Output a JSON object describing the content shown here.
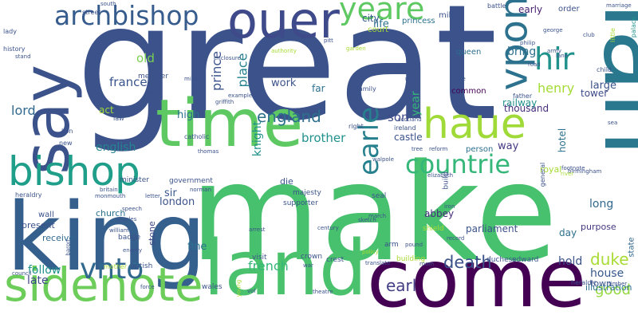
{
  "colors": {
    "background": "#ffffff",
    "palette": [
      "#440154",
      "#3b528b",
      "#21918c",
      "#5ec962",
      "#fde725"
    ]
  },
  "words": [
    {
      "id": "great",
      "text": "great",
      "color": "#3b528b"
    },
    {
      "id": "make",
      "text": "make",
      "color": "#47c16e"
    },
    {
      "id": "come",
      "text": "come",
      "color": "#440154"
    },
    {
      "id": "man",
      "text": "man",
      "color": "#2a788e"
    },
    {
      "id": "king",
      "text": "king",
      "color": "#355f8d"
    },
    {
      "id": "land",
      "text": "land",
      "color": "#4ac16d"
    },
    {
      "id": "time",
      "text": "time",
      "color": "#5ec962"
    },
    {
      "id": "say",
      "text": "say",
      "color": "#3b528b"
    },
    {
      "id": "sidenote",
      "text": "sidenote",
      "color": "#6ccd5a"
    },
    {
      "id": "bishop",
      "text": "bishop",
      "color": "#1f9e89"
    },
    {
      "id": "ouer",
      "text": "ouer",
      "color": "#3e4a89"
    },
    {
      "id": "haue",
      "text": "haue",
      "color": "#a0da39"
    },
    {
      "id": "archbishop",
      "text": "archbishop",
      "color": "#365c8d"
    },
    {
      "id": "vpon",
      "text": "vpon",
      "color": "#2c728e"
    },
    {
      "id": "hir",
      "text": "hir",
      "color": "#21918c"
    },
    {
      "id": "yeare",
      "text": "yeare",
      "color": "#5ec962"
    },
    {
      "id": "vnto",
      "text": "vnto",
      "color": "#31688e"
    },
    {
      "id": "countrie",
      "text": "countrie",
      "color": "#35b779"
    },
    {
      "id": "earle",
      "text": "earle",
      "color": "#27808e"
    },
    {
      "id": "sonne",
      "text": "sonne",
      "color": "#1f9a8a"
    },
    {
      "id": "duke",
      "text": "duke",
      "color": "#a8db34"
    },
    {
      "id": "death",
      "text": "death",
      "color": "#3b528b"
    },
    {
      "id": "earl",
      "text": "earl",
      "color": "#433e85"
    },
    {
      "id": "england",
      "text": "england",
      "color": "#2d708e"
    },
    {
      "id": "french",
      "text": "french",
      "color": "#35b779"
    },
    {
      "id": "good",
      "text": "good",
      "color": "#95d840"
    },
    {
      "id": "brother",
      "text": "brother",
      "color": "#21918c"
    },
    {
      "id": "son",
      "text": "son",
      "color": "#3e4a89"
    },
    {
      "id": "english",
      "text": "english",
      "color": "#25858e"
    },
    {
      "id": "lord",
      "text": "lord",
      "color": "#31688e"
    },
    {
      "id": "france",
      "text": "france",
      "color": "#3a548c"
    },
    {
      "id": "old",
      "text": "old",
      "color": "#7ad151"
    },
    {
      "id": "henry",
      "text": "henry",
      "color": "#a5db36"
    },
    {
      "id": "house",
      "text": "house",
      "color": "#38598c"
    },
    {
      "id": "follow",
      "text": "follow",
      "color": "#21918c"
    },
    {
      "id": "late",
      "text": "late",
      "color": "#3e4a89"
    },
    {
      "id": "fine",
      "text": "fine",
      "color": "#2c728e"
    },
    {
      "id": "hold",
      "text": "hold",
      "color": "#3b528b"
    },
    {
      "id": "long",
      "text": "long",
      "color": "#31688e"
    },
    {
      "id": "prince",
      "text": "prince",
      "color": "#3b528b"
    },
    {
      "id": "place",
      "text": "place",
      "color": "#26828e"
    },
    {
      "id": "work",
      "text": "work",
      "color": "#3b528b"
    },
    {
      "id": "bring",
      "text": "bring",
      "color": "#2d708e"
    },
    {
      "id": "large",
      "text": "large",
      "color": "#3b528b"
    },
    {
      "id": "tower",
      "text": "tower",
      "color": "#3e4a89"
    },
    {
      "id": "knight",
      "text": "knight",
      "color": "#21918c"
    },
    {
      "id": "early",
      "text": "early",
      "color": "#482173"
    },
    {
      "id": "life",
      "text": "life",
      "color": "#2c728e"
    },
    {
      "id": "city",
      "text": "city",
      "color": "#38598c"
    },
    {
      "id": "castle",
      "text": "castle",
      "color": "#3b528b"
    },
    {
      "id": "year",
      "text": "year",
      "color": "#35b779"
    },
    {
      "id": "way",
      "text": "way",
      "color": "#443983"
    },
    {
      "id": "high",
      "text": "high",
      "color": "#2c728e"
    },
    {
      "id": "sir",
      "text": "sir",
      "color": "#38598c"
    },
    {
      "id": "london",
      "text": "london",
      "color": "#3b528b"
    },
    {
      "id": "church",
      "text": "church",
      "color": "#2c728e"
    },
    {
      "id": "abbey",
      "text": "abbey",
      "color": "#472c7a"
    },
    {
      "id": "parliament",
      "text": "parliament",
      "color": "#3b528b"
    },
    {
      "id": "purpose",
      "text": "purpose",
      "color": "#453781"
    },
    {
      "id": "day",
      "text": "day",
      "color": "#2d708e"
    },
    {
      "id": "present",
      "text": "present",
      "color": "#3b528b"
    },
    {
      "id": "receive",
      "text": "receive",
      "color": "#31688e"
    },
    {
      "id": "act",
      "text": "act",
      "color": "#a0da39"
    },
    {
      "id": "far",
      "text": "far",
      "color": "#2c728e"
    },
    {
      "id": "thousand",
      "text": "thousand",
      "color": "#472c7a"
    },
    {
      "id": "railway",
      "text": "railway",
      "color": "#21918c"
    },
    {
      "id": "hotel",
      "text": "hotel",
      "color": "#2c728e"
    },
    {
      "id": "royal",
      "text": "royal",
      "color": "#a8db34"
    },
    {
      "id": "order",
      "text": "order",
      "color": "#3b528b"
    },
    {
      "id": "town",
      "text": "town",
      "color": "#3b528b"
    },
    {
      "id": "illustration",
      "text": "illustration",
      "color": "#2c728e"
    },
    {
      "id": "state",
      "text": "state",
      "color": "#31688e"
    },
    {
      "id": "die",
      "text": "die",
      "color": "#3b528b"
    },
    {
      "id": "stone",
      "text": "stone",
      "color": "#3e4a89"
    },
    {
      "id": "mile",
      "text": "mile",
      "color": "#3b528b"
    },
    {
      "id": "common",
      "text": "common",
      "color": "#440154"
    },
    {
      "id": "princess",
      "text": "princess",
      "color": "#2c728e"
    },
    {
      "id": "queen",
      "text": "queen",
      "color": "#2d708e"
    },
    {
      "id": "court",
      "text": "court",
      "color": "#a8db34"
    },
    {
      "id": "person",
      "text": "person",
      "color": "#2d708e"
    },
    {
      "id": "member",
      "text": "member",
      "color": "#3b528b"
    },
    {
      "id": "wall",
      "text": "wall",
      "color": "#3b528b"
    },
    {
      "id": "minister",
      "text": "minister",
      "color": "#3b528b"
    },
    {
      "id": "government",
      "text": "government",
      "color": "#3b528b"
    },
    {
      "id": "majesty",
      "text": "majesty",
      "color": "#3b528b"
    },
    {
      "id": "seal",
      "text": "seal",
      "color": "#3b528b"
    },
    {
      "id": "build",
      "text": "build",
      "color": "#3b528b"
    },
    {
      "id": "supporter",
      "text": "supporter",
      "color": "#3b528b"
    },
    {
      "id": "badge",
      "text": "badge",
      "color": "#3b528b"
    },
    {
      "id": "british",
      "text": "british",
      "color": "#3b528b"
    },
    {
      "id": "visit",
      "text": "visit",
      "color": "#3b528b"
    },
    {
      "id": "crown",
      "text": "crown",
      "color": "#3b528b"
    },
    {
      "id": "crest",
      "text": "crest",
      "color": "#3b528b"
    },
    {
      "id": "arm",
      "text": "arm",
      "color": "#3b528b"
    },
    {
      "id": "duchess",
      "text": "duchess",
      "color": "#3b528b"
    },
    {
      "id": "edward",
      "text": "edward",
      "color": "#3b528b"
    },
    {
      "id": "heraldic",
      "text": "heraldic",
      "color": "#3b528b"
    },
    {
      "id": "heraldry",
      "text": "heraldry",
      "color": "#3b528b"
    },
    {
      "id": "mother",
      "text": "mother",
      "color": "#a8db34"
    },
    {
      "id": "building",
      "text": "building",
      "color": "#a8db34"
    },
    {
      "id": "shield",
      "text": "shield",
      "color": "#a8db34"
    },
    {
      "id": "wales",
      "text": "wales",
      "color": "#3b528b"
    },
    {
      "id": "history",
      "text": "history",
      "color": "#3b528b"
    },
    {
      "id": "lady",
      "text": "lady",
      "color": "#3b528b"
    },
    {
      "id": "ireland",
      "text": "ireland",
      "color": "#3b528b"
    },
    {
      "id": "right",
      "text": "right",
      "color": "#3b528b"
    },
    {
      "id": "general",
      "text": "general",
      "color": "#3b528b"
    },
    {
      "id": "lion",
      "text": "lion",
      "color": "#3b528b"
    },
    {
      "id": "new",
      "text": "new",
      "color": "#3b528b"
    },
    {
      "id": "law",
      "text": "law",
      "color": "#3b528b"
    },
    {
      "id": "catholic",
      "text": "catholic",
      "color": "#3b528b"
    },
    {
      "id": "father",
      "text": "father",
      "color": "#3b528b"
    },
    {
      "id": "family",
      "text": "family",
      "color": "#3b528b"
    },
    {
      "id": "street",
      "text": "street",
      "color": "#3b528b"
    },
    {
      "id": "battle",
      "text": "battle",
      "color": "#3b528b"
    },
    {
      "id": "marriage",
      "text": "marriage",
      "color": "#3b528b"
    },
    {
      "id": "palace",
      "text": "palace",
      "color": "#21918c"
    },
    {
      "id": "little",
      "text": "little",
      "color": "#a8db34"
    },
    {
      "id": "child",
      "text": "child",
      "color": "#3b528b"
    },
    {
      "id": "lane",
      "text": "lane",
      "color": "#3b528b"
    },
    {
      "id": "road",
      "text": "road",
      "color": "#3b528b"
    },
    {
      "id": "army",
      "text": "army",
      "color": "#3b528b"
    },
    {
      "id": "george",
      "text": "george",
      "color": "#3b528b"
    },
    {
      "id": "club",
      "text": "club",
      "color": "#3b528b"
    },
    {
      "id": "philip",
      "text": "philip",
      "color": "#3b528b"
    },
    {
      "id": "footnote",
      "text": "footnote",
      "color": "#3b528b"
    },
    {
      "id": "birmingham",
      "text": "birmingham",
      "color": "#3b528b"
    },
    {
      "id": "river",
      "text": "river",
      "color": "#a8db34"
    },
    {
      "id": "miner",
      "text": "miner",
      "color": "#3b528b"
    },
    {
      "id": "acre",
      "text": "acre",
      "color": "#3b528b"
    },
    {
      "id": "griffith",
      "text": "griffith",
      "color": "#3b528b"
    },
    {
      "id": "example",
      "text": "example",
      "color": "#3b528b"
    },
    {
      "id": "authority",
      "text": "authority",
      "color": "#a8db34"
    },
    {
      "id": "enclosure",
      "text": "enclosure",
      "color": "#3b528b"
    },
    {
      "id": "garden",
      "text": "garden",
      "color": "#a8db34"
    },
    {
      "id": "pitt",
      "text": "pitt",
      "color": "#3b528b"
    },
    {
      "id": "scotland",
      "text": "scotland",
      "color": "#3b528b"
    },
    {
      "id": "date",
      "text": "date",
      "color": "#3b528b"
    },
    {
      "id": "mary",
      "text": "mary",
      "color": "#3b528b"
    },
    {
      "id": "thomas",
      "text": "thomas",
      "color": "#3b528b"
    },
    {
      "id": "norman",
      "text": "norman",
      "color": "#3b528b"
    },
    {
      "id": "speech",
      "text": "speech",
      "color": "#3b528b"
    },
    {
      "id": "letter",
      "text": "letter",
      "color": "#3b528b"
    },
    {
      "id": "william",
      "text": "william",
      "color": "#3b528b"
    },
    {
      "id": "monmouth",
      "text": "monmouth",
      "color": "#3b528b"
    },
    {
      "id": "britain",
      "text": "britain",
      "color": "#3b528b"
    },
    {
      "id": "charles",
      "text": "charles",
      "color": "#3b528b"
    },
    {
      "id": "council",
      "text": "council",
      "color": "#3b528b"
    },
    {
      "id": "march",
      "text": "march",
      "color": "#3b528b"
    },
    {
      "id": "record",
      "text": "record",
      "color": "#3b528b"
    },
    {
      "id": "pound",
      "text": "pound",
      "color": "#3b528b"
    },
    {
      "id": "room",
      "text": "room",
      "color": "#3b528b"
    },
    {
      "id": "translate",
      "text": "translate",
      "color": "#3b528b"
    },
    {
      "id": "war",
      "text": "war",
      "color": "#3b528b"
    },
    {
      "id": "theatre",
      "text": "theatre",
      "color": "#3b528b"
    },
    {
      "id": "force",
      "text": "force",
      "color": "#3b528b"
    },
    {
      "id": "young",
      "text": "young",
      "color": "#a8db34"
    },
    {
      "id": "timber",
      "text": "timber",
      "color": "#3b528b"
    },
    {
      "id": "reform",
      "text": "reform",
      "color": "#3b528b"
    },
    {
      "id": "tree",
      "text": "tree",
      "color": "#3b528b"
    },
    {
      "id": "walpole",
      "text": "walpole",
      "color": "#3b528b"
    },
    {
      "id": "elizabeth",
      "text": "elizabeth",
      "color": "#3b528b"
    },
    {
      "id": "iron",
      "text": "iron",
      "color": "#3b528b"
    },
    {
      "id": "century",
      "text": "century",
      "color": "#3b528b"
    },
    {
      "id": "sketch",
      "text": "sketch",
      "color": "#3b528b"
    },
    {
      "id": "baron",
      "text": "baron",
      "color": "#3b528b"
    },
    {
      "id": "oak",
      "text": "oak",
      "color": "#3b528b"
    },
    {
      "id": "stand",
      "text": "stand",
      "color": "#3b528b"
    },
    {
      "id": "coal",
      "text": "coal",
      "color": "#3b528b"
    },
    {
      "id": "sea",
      "text": "sea",
      "color": "#3b528b"
    },
    {
      "id": "vol",
      "text": "vol",
      "color": "#3b528b"
    },
    {
      "id": "policy",
      "text": "policy",
      "color": "#a8db34"
    },
    {
      "id": "arrest",
      "text": "arrest",
      "color": "#3b528b"
    },
    {
      "id": "south",
      "text": "south",
      "color": "#3b528b"
    },
    {
      "id": "enemy",
      "text": "enemy",
      "color": "#3b528b"
    }
  ]
}
